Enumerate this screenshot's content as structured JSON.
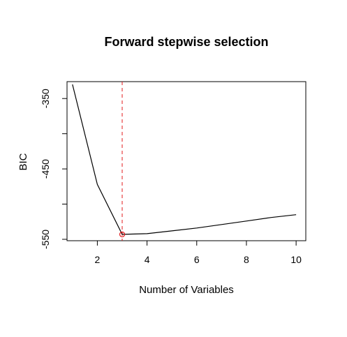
{
  "chart_data": {
    "type": "line",
    "title": "Forward stepwise selection",
    "xlabel": "Number of Variables",
    "ylabel": "BIC",
    "x": [
      1,
      2,
      3,
      4,
      5,
      6,
      7,
      8,
      9,
      10
    ],
    "series": [
      {
        "values": [
          -330,
          -472,
          -543,
          -542,
          -538,
          -534,
          -529,
          -524,
          -519,
          -515
        ]
      }
    ],
    "xlim": [
      0.78,
      10.39
    ],
    "ylim": [
      -552,
      -326
    ],
    "xticks": [
      2,
      4,
      6,
      8,
      10
    ],
    "xtick_labels": [
      "2",
      "4",
      "6",
      "8",
      "10"
    ],
    "yticks": [
      -550,
      -500,
      -450,
      -400,
      -350
    ],
    "ytick_labels": [
      "-550",
      "",
      "-450",
      "",
      "-350"
    ],
    "highlight": {
      "x": 3,
      "y": -543,
      "marker": "open-circle",
      "color": "#e31a1c"
    },
    "vline": {
      "x": 3,
      "style": "dashed",
      "color": "#e31a1c"
    },
    "grid": false,
    "legend": "none",
    "colors": {
      "line": "#000000",
      "highlight": "#e31a1c"
    }
  }
}
